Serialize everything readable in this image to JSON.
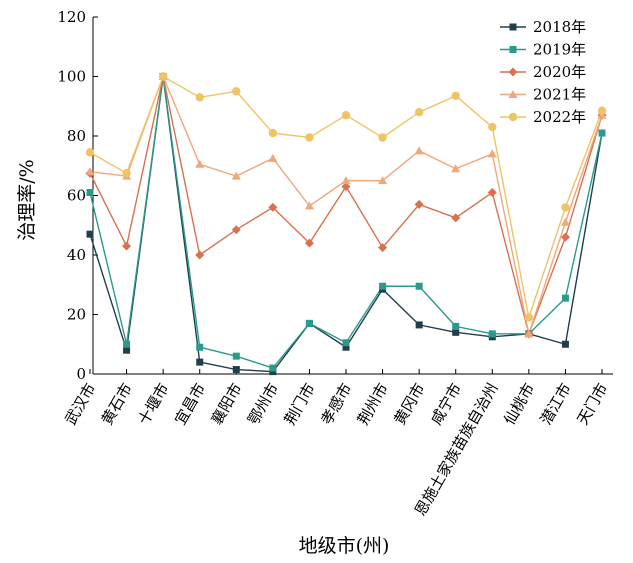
{
  "chart_data": {
    "type": "line",
    "title": "",
    "xlabel": "地级市(州)",
    "ylabel": "治理率/%",
    "ylim": [
      0,
      120
    ],
    "yticks": [
      0,
      20,
      40,
      60,
      80,
      100,
      120
    ],
    "grid": false,
    "legend_position": "top-right",
    "categories": [
      "武汉市",
      "黄石市",
      "十堰市",
      "宜昌市",
      "襄阳市",
      "鄂州市",
      "荆门市",
      "孝感市",
      "荆州市",
      "黄冈市",
      "咸宁市",
      "恩施土家族苗族自治州",
      "仙桃市",
      "潜江市",
      "天门市"
    ],
    "series": [
      {
        "name": "2018年",
        "color": "#203f4e",
        "marker": "square",
        "values": [
          47,
          8,
          100,
          4,
          1.5,
          0.8,
          17,
          9,
          28.5,
          16.5,
          14,
          12.5,
          13.5,
          10,
          81
        ]
      },
      {
        "name": "2019年",
        "color": "#2a9a8c",
        "marker": "square",
        "values": [
          61,
          10,
          100,
          9,
          6,
          2,
          17,
          10.5,
          29.5,
          29.5,
          16,
          13.5,
          13.5,
          25.5,
          81
        ]
      },
      {
        "name": "2020年",
        "color": "#d9714e",
        "marker": "diamond",
        "values": [
          67.5,
          43,
          100,
          40,
          48.5,
          56,
          44,
          63,
          42.5,
          57,
          52.5,
          61,
          13.5,
          46,
          87
        ]
      },
      {
        "name": "2021年",
        "color": "#f0a77b",
        "marker": "triangle",
        "values": [
          68,
          66.5,
          100,
          70.5,
          66.5,
          72.5,
          56.5,
          65,
          65,
          75,
          69,
          74,
          13.5,
          51,
          87
        ]
      },
      {
        "name": "2022年",
        "color": "#efc467",
        "marker": "circle",
        "values": [
          74.5,
          67.5,
          100,
          93,
          95,
          81,
          79.5,
          87,
          79.5,
          88,
          93.5,
          83,
          19,
          56,
          88.5
        ]
      }
    ]
  }
}
